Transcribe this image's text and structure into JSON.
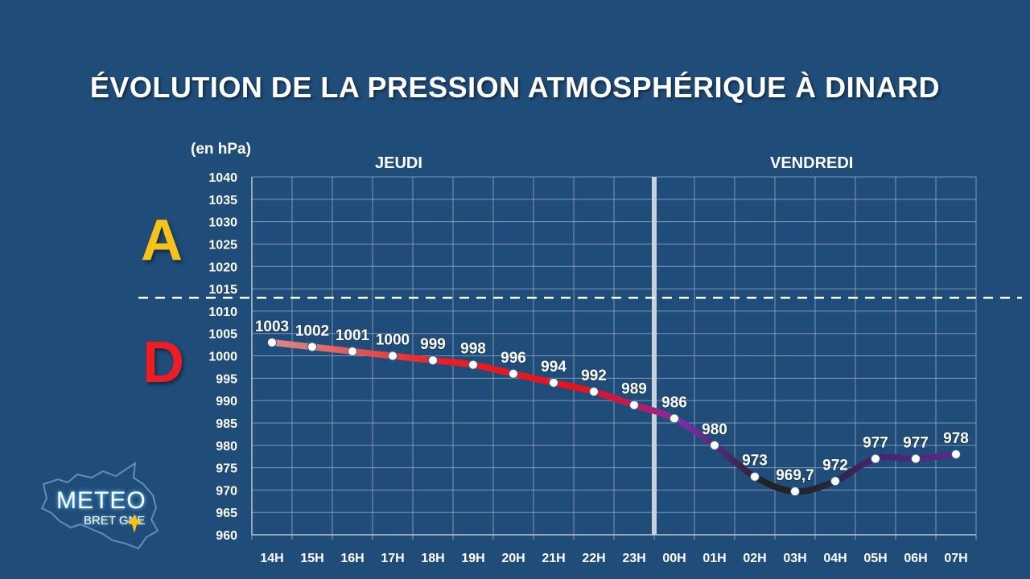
{
  "colors": {
    "background": "#1f4c78",
    "anticyclone": "#f7c31a",
    "depression": "#ee1c24",
    "grid": "#8fa6c0",
    "text": "#ffffff"
  },
  "labels": {
    "zone_high": "A",
    "zone_low": "D",
    "logo_top": "METEO",
    "logo_bottom": "BRET GNE"
  },
  "chart_data": {
    "type": "line",
    "title": "ÉVOLUTION DE LA PRESSION ATMOSPHÉRIQUE À DINARD",
    "ylabel": "(en hPa)",
    "xlabel": "",
    "ylim": [
      960,
      1040
    ],
    "y_ticks": [
      "1040",
      "1035",
      "1030",
      "1025",
      "1020",
      "1015",
      "1010",
      "1005",
      "1000",
      "995",
      "990",
      "985",
      "980",
      "975",
      "970",
      "965",
      "960"
    ],
    "y_tick_values": [
      1040,
      1035,
      1030,
      1025,
      1020,
      1015,
      1010,
      1005,
      1000,
      995,
      990,
      985,
      980,
      975,
      970,
      965,
      960
    ],
    "categories": [
      "14H",
      "15H",
      "16H",
      "17H",
      "18H",
      "19H",
      "20H",
      "21H",
      "22H",
      "23H",
      "00H",
      "01H",
      "02H",
      "03H",
      "04H",
      "05H",
      "06H",
      "07H"
    ],
    "days": [
      {
        "label": "JEUDI",
        "from": "14H",
        "to": "23H"
      },
      {
        "label": "VENDREDI",
        "from": "00H",
        "to": "07H"
      }
    ],
    "series": [
      {
        "values": [
          1003,
          1002,
          1001,
          1000,
          999,
          998,
          996,
          994,
          992,
          989,
          986,
          980,
          973,
          969.7,
          972,
          977,
          977,
          978
        ],
        "data_labels": [
          "1003",
          "1002",
          "1001",
          "1000",
          "999",
          "998",
          "996",
          "994",
          "992",
          "989",
          "986",
          "980",
          "973",
          "969,7",
          "972",
          "977",
          "977",
          "978"
        ]
      }
    ],
    "reference_line": {
      "value": 1013,
      "style": "dashed"
    },
    "grid": true,
    "legend": "none"
  }
}
